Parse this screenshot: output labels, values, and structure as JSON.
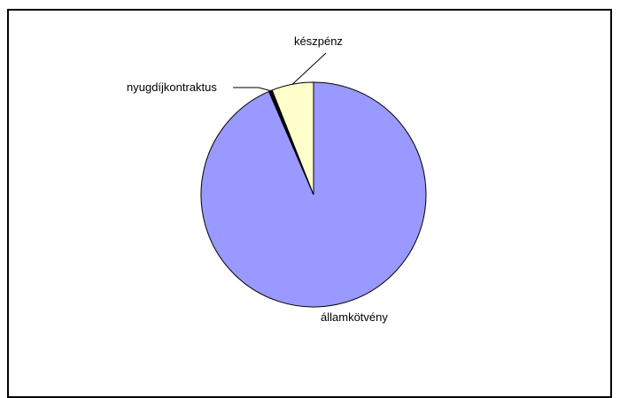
{
  "chart_data": {
    "type": "pie",
    "slices": [
      {
        "label": "államkötvény",
        "value": 93.5,
        "color": "#9999ff"
      },
      {
        "label": "nyugdíjkontraktus",
        "value": 0.5,
        "color": "#000000"
      },
      {
        "label": "készpénz",
        "value": 6.0,
        "color": "#ffffcc"
      }
    ],
    "legend": "none"
  }
}
